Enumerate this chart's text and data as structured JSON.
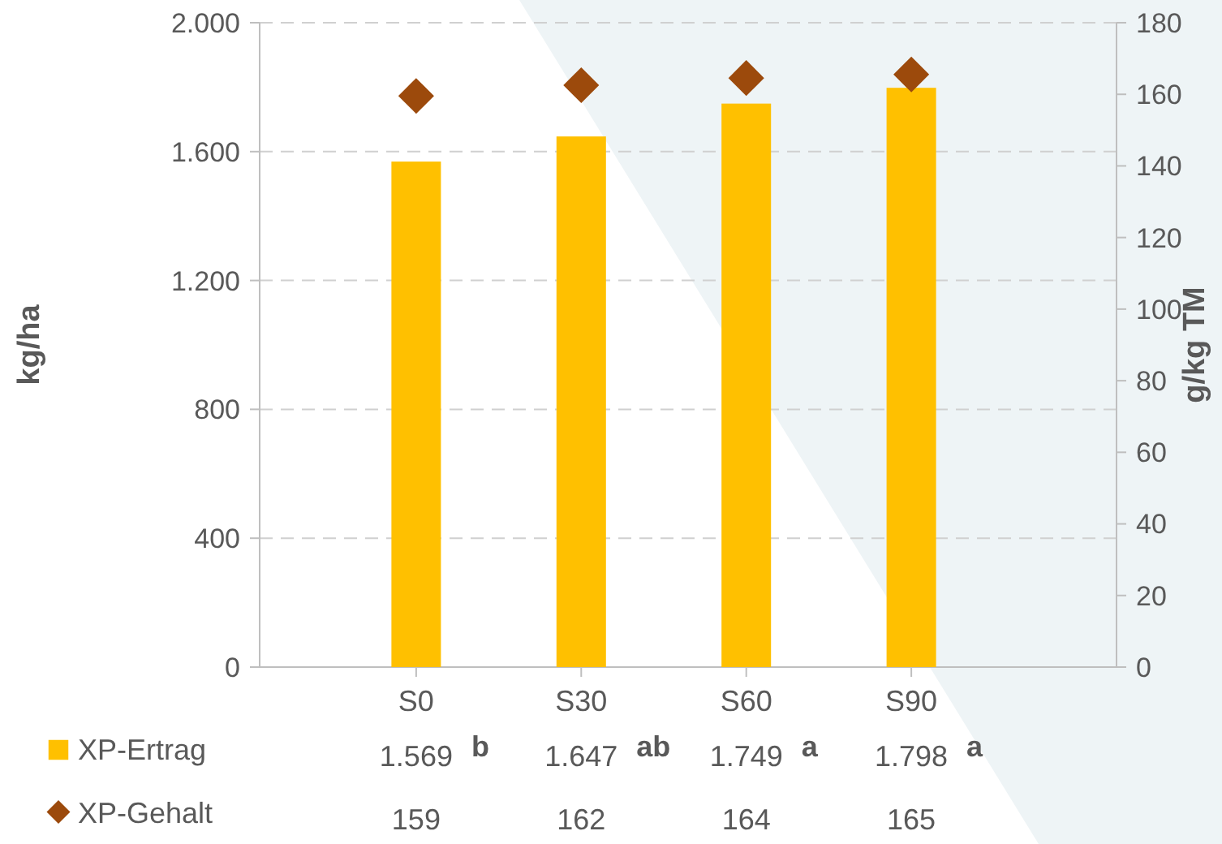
{
  "chart_data": {
    "type": "bar",
    "categories": [
      "S0",
      "S30",
      "S60",
      "S90"
    ],
    "ylabel": "kg/ha",
    "y2label": "g/kg TM",
    "ylim": [
      0,
      2000
    ],
    "yticks": [
      0,
      400,
      800,
      {
        "value": 1200,
        "label": "1.200"
      },
      {
        "value": 1600,
        "label": "1.600"
      },
      {
        "value": 2000,
        "label": "2.000"
      }
    ],
    "y2lim": [
      0,
      180
    ],
    "y2ticks": [
      0,
      20,
      40,
      60,
      80,
      100,
      120,
      140,
      160,
      180
    ],
    "series": [
      {
        "name": "XP-Ertrag",
        "color": "#ffc000",
        "values": [
          1569,
          1647,
          1749,
          1798
        ],
        "value_labels": [
          "1.569",
          "1.647",
          "1.749",
          "1.798"
        ]
      },
      {
        "name": "XP-Gehalt",
        "type": "scatter",
        "axis": "y2",
        "marker": "diamond",
        "color": "#9c4a0c",
        "values": [
          159,
          162,
          164,
          165
        ],
        "value_labels": [
          "159",
          "162",
          "164",
          "165"
        ]
      }
    ],
    "annotations": [
      "b",
      "ab",
      "a",
      "a"
    ],
    "grid": "y",
    "legend": "bottom"
  }
}
